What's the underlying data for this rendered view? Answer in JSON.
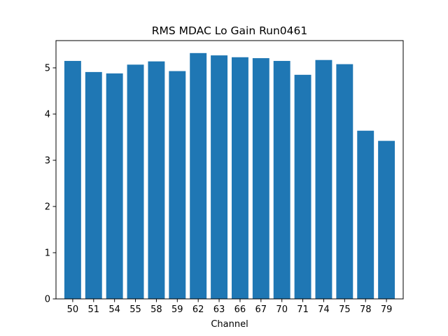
{
  "chart_data": {
    "type": "bar",
    "title": "RMS MDAC Lo Gain Run0461",
    "xlabel": "Channel",
    "ylabel": "",
    "categories": [
      "50",
      "51",
      "54",
      "55",
      "58",
      "59",
      "62",
      "63",
      "66",
      "67",
      "70",
      "71",
      "74",
      "75",
      "78",
      "79"
    ],
    "values": [
      5.15,
      4.91,
      4.88,
      5.07,
      5.14,
      4.93,
      5.32,
      5.27,
      5.23,
      5.21,
      5.15,
      4.85,
      5.17,
      5.08,
      3.64,
      3.42
    ],
    "ylim": [
      0,
      5.59
    ],
    "yticks": [
      0,
      1,
      2,
      3,
      4,
      5
    ],
    "grid": false,
    "bar_color": "#1f77b4"
  }
}
